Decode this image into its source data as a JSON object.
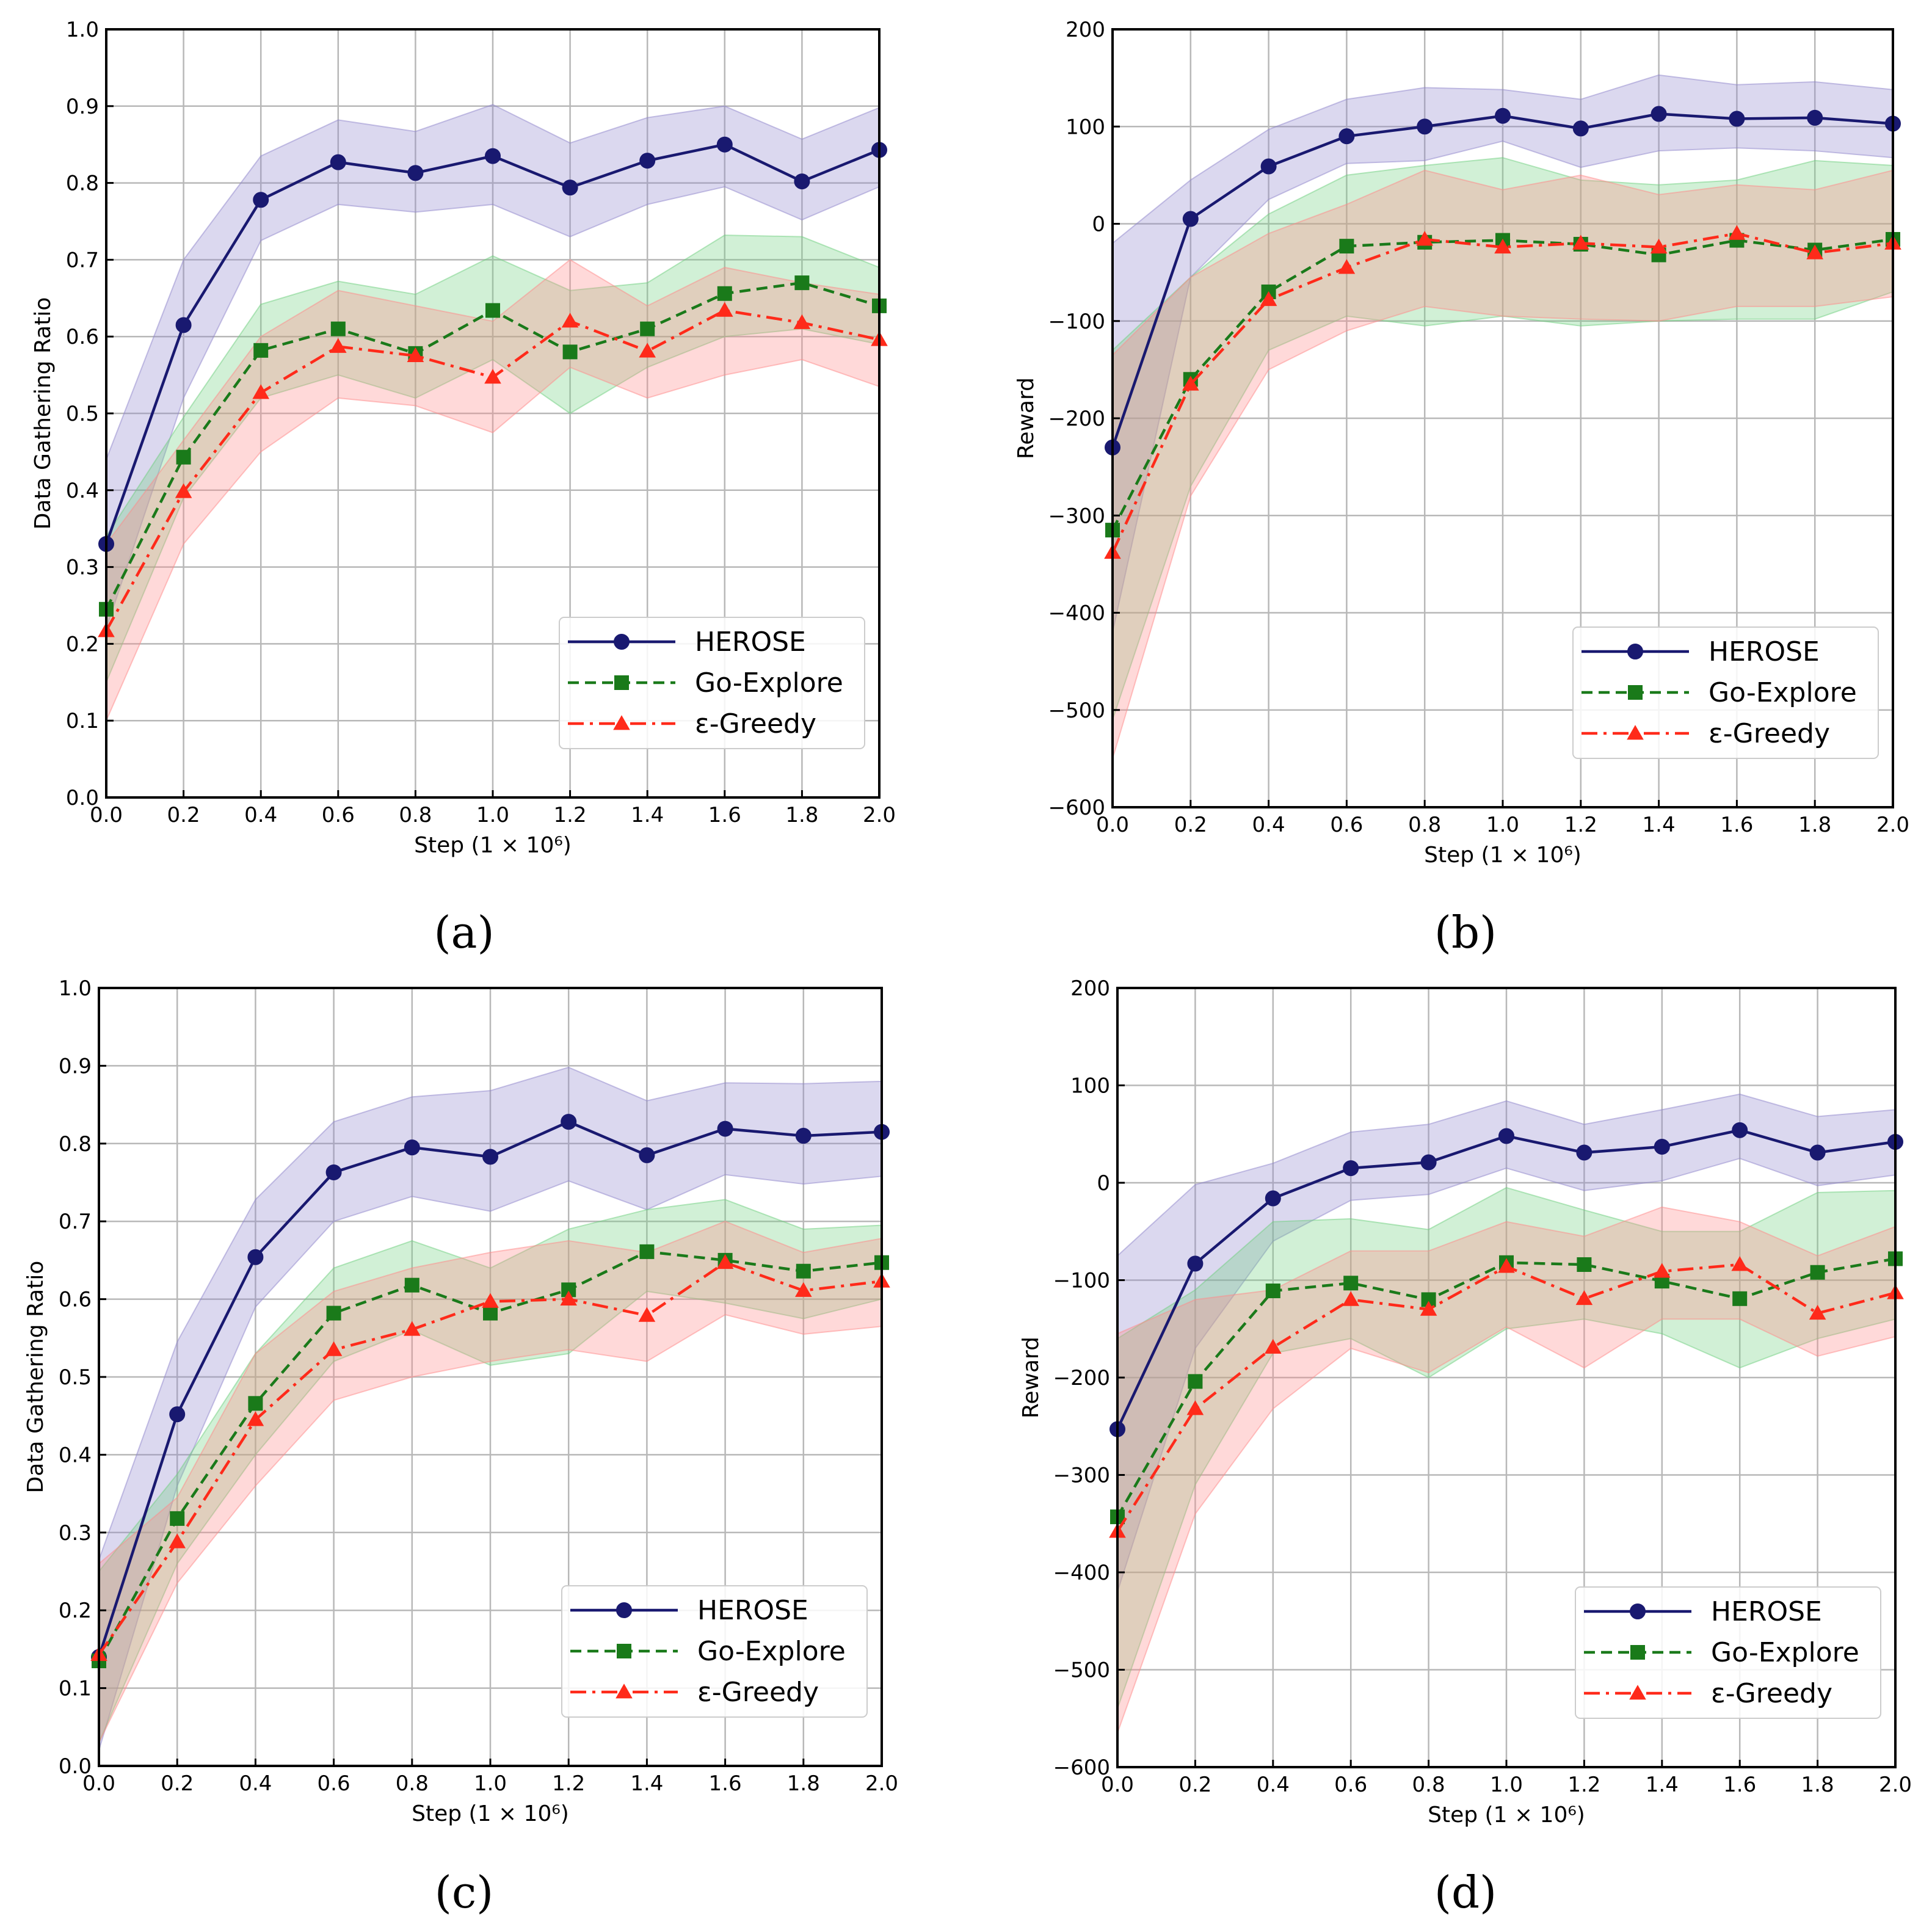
{
  "figure": {
    "captions": [
      "(a)",
      "(b)",
      "(c)",
      "(d)"
    ]
  },
  "colors": {
    "HEROSE": "#191970",
    "Go-Explore": "#1a7a1a",
    "ε-Greedy": "#ff2a1a",
    "HEROSE_band": "#8f85cc",
    "Go-Explore_band": "#6fcf7f",
    "ε-Greedy_band": "#ff8a8a",
    "grid": "#b8b8b8"
  },
  "chart_data": [
    {
      "type": "line",
      "caption": "(a)",
      "xlabel": "Step (1 × 10⁶)",
      "ylabel": "Data Gathering Ratio",
      "xlim": [
        0.0,
        2.0
      ],
      "ylim": [
        0.0,
        1.0
      ],
      "xticks": [
        "0.0",
        "0.2",
        "0.4",
        "0.6",
        "0.8",
        "1.0",
        "1.2",
        "1.4",
        "1.6",
        "1.8",
        "2.0"
      ],
      "yticks": [
        "0.0",
        "0.1",
        "0.2",
        "0.3",
        "0.4",
        "0.5",
        "0.6",
        "0.7",
        "0.8",
        "0.9",
        "1.0"
      ],
      "grid": true,
      "legend_position": "lower-right",
      "x": [
        0.0,
        0.2,
        0.4,
        0.6,
        0.8,
        1.0,
        1.2,
        1.4,
        1.6,
        1.8,
        2.0
      ],
      "series": [
        {
          "name": "HEROSE",
          "marker": "circle",
          "linestyle": "solid",
          "values": [
            0.33,
            0.615,
            0.778,
            0.827,
            0.813,
            0.835,
            0.794,
            0.829,
            0.85,
            0.802,
            0.843
          ],
          "lower": [
            0.22,
            0.52,
            0.725,
            0.772,
            0.762,
            0.772,
            0.73,
            0.772,
            0.795,
            0.752,
            0.795
          ],
          "upper": [
            0.44,
            0.7,
            0.835,
            0.882,
            0.867,
            0.902,
            0.852,
            0.885,
            0.9,
            0.857,
            0.898
          ]
        },
        {
          "name": "Go-Explore",
          "marker": "square",
          "linestyle": "dashed",
          "values": [
            0.245,
            0.443,
            0.582,
            0.61,
            0.578,
            0.634,
            0.58,
            0.61,
            0.656,
            0.67,
            0.64
          ],
          "lower": [
            0.15,
            0.39,
            0.52,
            0.55,
            0.52,
            0.57,
            0.5,
            0.56,
            0.6,
            0.61,
            0.59
          ],
          "upper": [
            0.34,
            0.495,
            0.642,
            0.672,
            0.655,
            0.705,
            0.66,
            0.67,
            0.732,
            0.73,
            0.69
          ]
        },
        {
          "name": "ε-Greedy",
          "marker": "triangle",
          "linestyle": "dashdot",
          "values": [
            0.217,
            0.398,
            0.527,
            0.587,
            0.575,
            0.547,
            0.62,
            0.581,
            0.634,
            0.618,
            0.596
          ],
          "lower": [
            0.1,
            0.33,
            0.45,
            0.52,
            0.51,
            0.475,
            0.56,
            0.52,
            0.55,
            0.57,
            0.535
          ],
          "upper": [
            0.33,
            0.465,
            0.6,
            0.66,
            0.64,
            0.62,
            0.7,
            0.64,
            0.69,
            0.67,
            0.655
          ]
        }
      ]
    },
    {
      "type": "line",
      "caption": "(b)",
      "xlabel": "Step (1 × 10⁶)",
      "ylabel": "Reward",
      "xlim": [
        0.0,
        2.0
      ],
      "ylim": [
        -600,
        200
      ],
      "xticks": [
        "0.0",
        "0.2",
        "0.4",
        "0.6",
        "0.8",
        "1.0",
        "1.2",
        "1.4",
        "1.6",
        "1.8",
        "2.0"
      ],
      "yticks": [
        "−600",
        "−500",
        "−400",
        "−300",
        "−200",
        "−100",
        "0",
        "100",
        "200"
      ],
      "grid": true,
      "legend_position": "lower-right",
      "x": [
        0.0,
        0.2,
        0.4,
        0.6,
        0.8,
        1.0,
        1.2,
        1.4,
        1.6,
        1.8,
        2.0
      ],
      "series": [
        {
          "name": "HEROSE",
          "marker": "circle",
          "linestyle": "solid",
          "values": [
            -230,
            5,
            59,
            90,
            100,
            111,
            98,
            113,
            108,
            109,
            103
          ],
          "lower": [
            -420,
            -55,
            25,
            62,
            65,
            85,
            58,
            75,
            78,
            75,
            68
          ],
          "upper": [
            -20,
            45,
            97,
            128,
            140,
            138,
            128,
            153,
            143,
            146,
            138
          ]
        },
        {
          "name": "Go-Explore",
          "marker": "square",
          "linestyle": "dashed",
          "values": [
            -315,
            -160,
            -70,
            -23,
            -19,
            -17,
            -21,
            -32,
            -17,
            -27,
            -16
          ],
          "lower": [
            -510,
            -270,
            -130,
            -95,
            -105,
            -95,
            -105,
            -100,
            -98,
            -98,
            -70
          ],
          "upper": [
            -130,
            -55,
            10,
            50,
            60,
            68,
            45,
            40,
            45,
            65,
            60
          ]
        },
        {
          "name": "ε-Greedy",
          "marker": "triangle",
          "linestyle": "dashdot",
          "values": [
            -338,
            -165,
            -78,
            -45,
            -16,
            -24,
            -20,
            -24,
            -10,
            -30,
            -20
          ],
          "lower": [
            -550,
            -280,
            -150,
            -110,
            -85,
            -95,
            -98,
            -100,
            -85,
            -85,
            -75
          ],
          "upper": [
            -135,
            -55,
            -10,
            20,
            55,
            35,
            50,
            30,
            40,
            35,
            55
          ]
        }
      ]
    },
    {
      "type": "line",
      "caption": "(c)",
      "xlabel": "Step (1 × 10⁶)",
      "ylabel": "Data Gathering Ratio",
      "xlim": [
        0.0,
        2.0
      ],
      "ylim": [
        0.0,
        1.0
      ],
      "xticks": [
        "0.0",
        "0.2",
        "0.4",
        "0.6",
        "0.8",
        "1.0",
        "1.2",
        "1.4",
        "1.6",
        "1.8",
        "2.0"
      ],
      "yticks": [
        "0.0",
        "0.1",
        "0.2",
        "0.3",
        "0.4",
        "0.5",
        "0.6",
        "0.7",
        "0.8",
        "0.9",
        "1.0"
      ],
      "grid": true,
      "legend_position": "lower-right",
      "x": [
        0.0,
        0.2,
        0.4,
        0.6,
        0.8,
        1.0,
        1.2,
        1.4,
        1.6,
        1.8,
        2.0
      ],
      "series": [
        {
          "name": "HEROSE",
          "marker": "circle",
          "linestyle": "solid",
          "values": [
            0.14,
            0.452,
            0.654,
            0.763,
            0.795,
            0.783,
            0.828,
            0.785,
            0.819,
            0.81,
            0.815
          ],
          "lower": [
            0.02,
            0.36,
            0.59,
            0.7,
            0.732,
            0.713,
            0.752,
            0.715,
            0.76,
            0.748,
            0.758
          ],
          "upper": [
            0.265,
            0.545,
            0.728,
            0.828,
            0.86,
            0.868,
            0.898,
            0.855,
            0.878,
            0.877,
            0.88
          ]
        },
        {
          "name": "Go-Explore",
          "marker": "square",
          "linestyle": "dashed",
          "values": [
            0.135,
            0.318,
            0.466,
            0.582,
            0.618,
            0.582,
            0.612,
            0.661,
            0.65,
            0.636,
            0.647
          ],
          "lower": [
            0.03,
            0.26,
            0.4,
            0.52,
            0.56,
            0.515,
            0.53,
            0.61,
            0.595,
            0.575,
            0.6
          ],
          "upper": [
            0.25,
            0.375,
            0.53,
            0.64,
            0.675,
            0.64,
            0.69,
            0.715,
            0.728,
            0.69,
            0.695
          ]
        },
        {
          "name": "ε-Greedy",
          "marker": "triangle",
          "linestyle": "dashdot",
          "values": [
            0.143,
            0.288,
            0.445,
            0.535,
            0.561,
            0.597,
            0.6,
            0.579,
            0.647,
            0.611,
            0.623
          ],
          "lower": [
            0.03,
            0.235,
            0.36,
            0.47,
            0.5,
            0.52,
            0.535,
            0.52,
            0.58,
            0.555,
            0.565
          ],
          "upper": [
            0.26,
            0.345,
            0.53,
            0.61,
            0.64,
            0.66,
            0.675,
            0.66,
            0.7,
            0.66,
            0.678
          ]
        }
      ]
    },
    {
      "type": "line",
      "caption": "(d)",
      "xlabel": "Step (1 × 10⁶)",
      "ylabel": "Reward",
      "xlim": [
        0.0,
        2.0
      ],
      "ylim": [
        -600,
        200
      ],
      "xticks": [
        "0.0",
        "0.2",
        "0.4",
        "0.6",
        "0.8",
        "1.0",
        "1.2",
        "1.4",
        "1.6",
        "1.8",
        "2.0"
      ],
      "yticks": [
        "−600",
        "−500",
        "−400",
        "−300",
        "−200",
        "−100",
        "0",
        "100",
        "200"
      ],
      "grid": true,
      "legend_position": "lower-right",
      "x": [
        0.0,
        0.2,
        0.4,
        0.6,
        0.8,
        1.0,
        1.2,
        1.4,
        1.6,
        1.8,
        2.0
      ],
      "series": [
        {
          "name": "HEROSE",
          "marker": "circle",
          "linestyle": "solid",
          "values": [
            -253,
            -83,
            -16,
            15,
            21,
            48,
            31,
            37,
            54,
            31,
            42
          ],
          "lower": [
            -420,
            -170,
            -60,
            -18,
            -12,
            15,
            -8,
            2,
            25,
            -3,
            8
          ],
          "upper": [
            -75,
            -2,
            20,
            52,
            60,
            84,
            60,
            75,
            91,
            68,
            75
          ]
        },
        {
          "name": "Go-Explore",
          "marker": "square",
          "linestyle": "dashed",
          "values": [
            -343,
            -204,
            -111,
            -103,
            -120,
            -82,
            -84,
            -101,
            -119,
            -92,
            -78
          ],
          "lower": [
            -540,
            -310,
            -175,
            -160,
            -200,
            -150,
            -140,
            -155,
            -190,
            -160,
            -140
          ],
          "upper": [
            -160,
            -110,
            -40,
            -37,
            -48,
            -5,
            -28,
            -50,
            -50,
            -10,
            -8
          ]
        },
        {
          "name": "ε-Greedy",
          "marker": "triangle",
          "linestyle": "dashdot",
          "values": [
            -358,
            -232,
            -169,
            -120,
            -130,
            -86,
            -119,
            -91,
            -84,
            -134,
            -113
          ],
          "lower": [
            -565,
            -340,
            -232,
            -170,
            -195,
            -148,
            -190,
            -140,
            -140,
            -178,
            -158
          ],
          "upper": [
            -155,
            -120,
            -110,
            -70,
            -70,
            -40,
            -55,
            -25,
            -40,
            -75,
            -45
          ]
        }
      ]
    }
  ]
}
